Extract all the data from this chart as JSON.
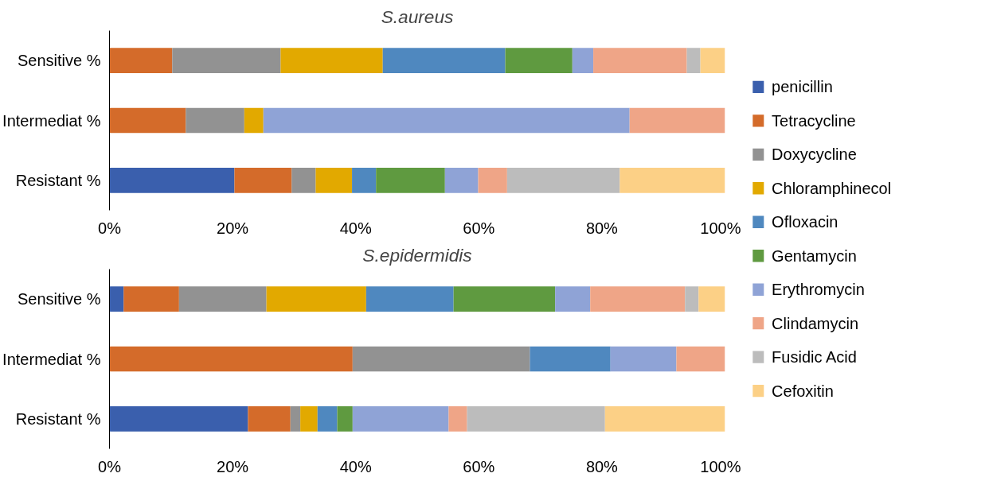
{
  "chart_data": [
    {
      "type": "bar",
      "title": "S.aureus",
      "orientation": "horizontal",
      "stacked": true,
      "categories": [
        "Sensitive %",
        "Intermediat %",
        "Resistant %"
      ],
      "xlim": [
        0,
        100
      ],
      "xticks": [
        {
          "value": 0,
          "label": "0%"
        },
        {
          "value": 20,
          "label": "20%"
        },
        {
          "value": 40,
          "label": "40%"
        },
        {
          "value": 60,
          "label": "60%"
        },
        {
          "value": 80,
          "label": "80%"
        },
        {
          "value": 100,
          "label": "100%"
        }
      ],
      "legend": "right",
      "series": [
        {
          "name": "penicillin",
          "color": "#3a5fad",
          "values": [
            0,
            0,
            20.3
          ]
        },
        {
          "name": "Tetracycline",
          "color": "#d46b2a",
          "values": [
            10.2,
            12.4,
            9.3
          ]
        },
        {
          "name": "Doxycycline",
          "color": "#929292",
          "values": [
            17.6,
            9.5,
            3.9
          ]
        },
        {
          "name": "Chloramphinecol",
          "color": "#e2a900",
          "values": [
            16.6,
            3.1,
            5.9
          ]
        },
        {
          "name": "Ofloxacin",
          "color": "#4f88bf",
          "values": [
            19.9,
            0,
            3.9
          ]
        },
        {
          "name": "Gentamycin",
          "color": "#5f9a40",
          "values": [
            10.9,
            0,
            11.2
          ]
        },
        {
          "name": "Erythromycin",
          "color": "#8fa3d6",
          "values": [
            3.4,
            59.5,
            5.4
          ]
        },
        {
          "name": "Clindamycin",
          "color": "#efa587",
          "values": [
            15.2,
            15.5,
            4.7
          ]
        },
        {
          "name": "Fusidic Acid",
          "color": "#bcbcbc",
          "values": [
            2.2,
            0,
            18.3
          ]
        },
        {
          "name": "Cefoxitin",
          "color": "#fcd086",
          "values": [
            4.0,
            0,
            17.1
          ]
        }
      ]
    },
    {
      "type": "bar",
      "title": "S.epidermidis",
      "orientation": "horizontal",
      "stacked": true,
      "categories": [
        "Sensitive %",
        "Intermediat %",
        "Resistant %"
      ],
      "xlim": [
        0,
        100
      ],
      "xticks": [
        {
          "value": 0,
          "label": "0%"
        },
        {
          "value": 20,
          "label": "20%"
        },
        {
          "value": 40,
          "label": "40%"
        },
        {
          "value": 60,
          "label": "60%"
        },
        {
          "value": 80,
          "label": "80%"
        },
        {
          "value": 100,
          "label": "100%"
        }
      ],
      "series": [
        {
          "color": "#3a5fad",
          "values": [
            2.3,
            0,
            22.5
          ]
        },
        {
          "color": "#d46b2a",
          "values": [
            9.0,
            39.5,
            6.9
          ]
        },
        {
          "color": "#929292",
          "values": [
            14.2,
            28.8,
            1.6
          ]
        },
        {
          "color": "#e2a900",
          "values": [
            16.2,
            0,
            2.8
          ]
        },
        {
          "color": "#4f88bf",
          "values": [
            14.2,
            13.1,
            3.2
          ]
        },
        {
          "color": "#5f9a40",
          "values": [
            16.5,
            0,
            2.5
          ]
        },
        {
          "color": "#8fa3d6",
          "values": [
            5.7,
            10.7,
            15.6
          ]
        },
        {
          "color": "#efa587",
          "values": [
            15.4,
            7.9,
            3.0
          ]
        },
        {
          "color": "#bcbcbc",
          "values": [
            2.2,
            0,
            22.4
          ]
        },
        {
          "color": "#fcd086",
          "values": [
            4.3,
            0,
            19.5
          ]
        }
      ]
    }
  ]
}
